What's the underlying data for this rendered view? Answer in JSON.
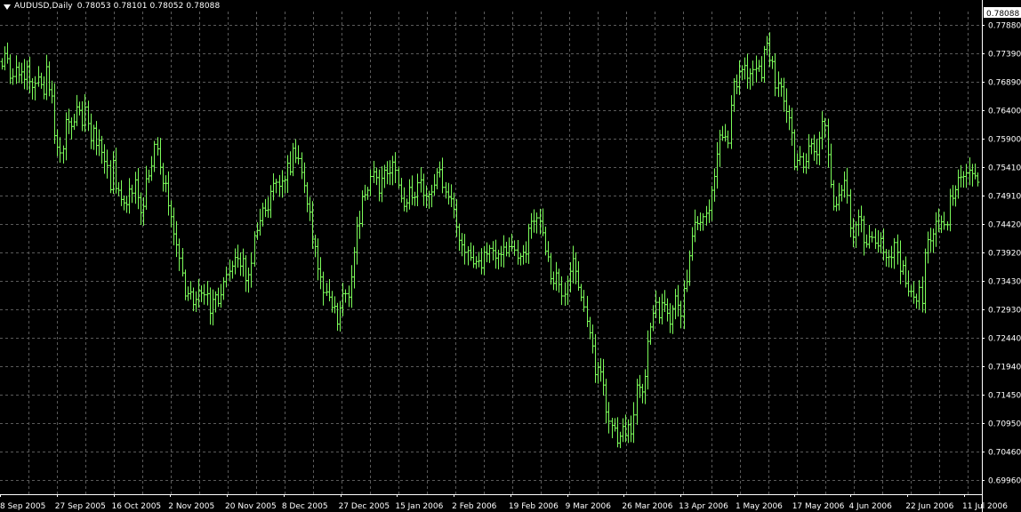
{
  "header": {
    "symbol": "AUDUSD,Daily",
    "quotes": "0.78053 0.78101 0.78052 0.78088"
  },
  "colors": {
    "background": "#000000",
    "grid": "#5a5a5a",
    "candle": "#7CFC5A",
    "axis_text": "#ffffff",
    "price_label_bg": "#ffffff",
    "price_label_text": "#000000"
  },
  "chart_data": {
    "type": "ohlc",
    "grid": true,
    "y_axis_side": "right",
    "ylim": [
      0.6971,
      0.7811
    ],
    "y_ticks": [
      "0.77880",
      "0.77390",
      "0.76890",
      "0.76400",
      "0.75900",
      "0.75410",
      "0.74910",
      "0.74420",
      "0.73920",
      "0.73430",
      "0.72930",
      "0.72440",
      "0.71940",
      "0.71450",
      "0.70950",
      "0.70460",
      "0.69960"
    ],
    "current_price_label": "0.78088",
    "x_tick_labels": [
      "8 Sep 2005",
      "27 Sep 2005",
      "16 Oct 2005",
      "2 Nov 2005",
      "20 Nov 2005",
      "8 Dec 2005",
      "27 Dec 2005",
      "15 Jan 2006",
      "2 Feb 2006",
      "19 Feb 2006",
      "9 Mar 2006",
      "26 Mar 2006",
      "13 Apr 2006",
      "1 May 2006",
      "17 May 2006",
      "4 Jun 2006",
      "22 Jun 2006",
      "11 Jul 2006"
    ],
    "series": [
      {
        "values": [
          0.7716,
          0.7738,
          0.7729,
          0.7695,
          0.7698,
          0.7714,
          0.7701,
          0.7706,
          0.7693,
          0.7715,
          0.7689,
          0.7679,
          0.7686,
          0.7697,
          0.7684,
          0.7667,
          0.7715,
          0.7675,
          0.7664,
          0.7595,
          0.7575,
          0.7565,
          0.7572,
          0.7623,
          0.7619,
          0.7611,
          0.7619,
          0.7645,
          0.7639,
          0.7613,
          0.7645,
          0.7616,
          0.7586,
          0.7608,
          0.7578,
          0.7587,
          0.7566,
          0.755,
          0.7543,
          0.7501,
          0.7552,
          0.7503,
          0.75,
          0.7484,
          0.7478,
          0.7475,
          0.7502,
          0.7495,
          0.7518,
          0.7487,
          0.7461,
          0.7472,
          0.752,
          0.7525,
          0.7542,
          0.758,
          0.7572,
          0.754,
          0.7512,
          0.7512,
          0.7473,
          0.7454,
          0.7424,
          0.7405,
          0.7382,
          0.7356,
          0.7316,
          0.732,
          0.7323,
          0.7301,
          0.731,
          0.7325,
          0.7321,
          0.7318,
          0.732,
          0.7286,
          0.731,
          0.7318,
          0.7303,
          0.7318,
          0.7341,
          0.7353,
          0.7359,
          0.7368,
          0.7383,
          0.7381,
          0.7368,
          0.7381,
          0.7343,
          0.7353,
          0.7373,
          0.7421,
          0.743,
          0.7447,
          0.7469,
          0.7465,
          0.7466,
          0.7498,
          0.7512,
          0.7514,
          0.7507,
          0.7516,
          0.7518,
          0.7547,
          0.7532,
          0.7573,
          0.7556,
          0.7555,
          0.7531,
          0.7508,
          0.7476,
          0.7462,
          0.7415,
          0.7402,
          0.7363,
          0.7349,
          0.7322,
          0.7323,
          0.7314,
          0.7296,
          0.7298,
          0.7267,
          0.7295,
          0.732,
          0.732,
          0.7314,
          0.7349,
          0.7392,
          0.7438,
          0.7442,
          0.7489,
          0.7492,
          0.75,
          0.7524,
          0.7532,
          0.7522,
          0.7495,
          0.7521,
          0.7535,
          0.7529,
          0.753,
          0.7549,
          0.7535,
          0.7509,
          0.7486,
          0.7472,
          0.7478,
          0.7505,
          0.7487,
          0.7488,
          0.7513,
          0.7518,
          0.7491,
          0.7489,
          0.7493,
          0.7497,
          0.7509,
          0.7531,
          0.7536,
          0.7505,
          0.7497,
          0.7488,
          0.7485,
          0.7467,
          0.7436,
          0.7413,
          0.7405,
          0.7392,
          0.7395,
          0.7383,
          0.7372,
          0.7376,
          0.7377,
          0.7365,
          0.7392,
          0.7389,
          0.7399,
          0.7395,
          0.7382,
          0.7389,
          0.7388,
          0.7401,
          0.7391,
          0.7402,
          0.7402,
          0.7396,
          0.7382,
          0.7385,
          0.7392,
          0.7389,
          0.7434,
          0.7446,
          0.7446,
          0.7452,
          0.7446,
          0.7426,
          0.7394,
          0.7384,
          0.7346,
          0.7338,
          0.7356,
          0.7336,
          0.7316,
          0.7319,
          0.7342,
          0.7359,
          0.7381,
          0.7359,
          0.7331,
          0.7314,
          0.7297,
          0.7272,
          0.7252,
          0.7229,
          0.7179,
          0.7192,
          0.7184,
          0.7161,
          0.7114,
          0.7098,
          0.7091,
          0.7086,
          0.706,
          0.7072,
          0.7089,
          0.7073,
          0.7092,
          0.7076,
          0.7109,
          0.7161,
          0.7157,
          0.7149,
          0.7176,
          0.7237,
          0.7262,
          0.7286,
          0.7305,
          0.7278,
          0.7304,
          0.7301,
          0.7286,
          0.7267,
          0.7294,
          0.7316,
          0.73,
          0.7281,
          0.7329,
          0.7341,
          0.7386,
          0.742,
          0.7444,
          0.7442,
          0.7444,
          0.7454,
          0.746,
          0.7465,
          0.75,
          0.7524,
          0.7563,
          0.7596,
          0.7592,
          0.7593,
          0.7582,
          0.7648,
          0.7689,
          0.768,
          0.7707,
          0.771,
          0.7717,
          0.7695,
          0.7703,
          0.771,
          0.7712,
          0.7716,
          0.7696,
          0.7745,
          0.7756,
          0.7726,
          0.7724,
          0.7678,
          0.7686,
          0.768,
          0.7655,
          0.7637,
          0.7626,
          0.76,
          0.7541,
          0.7552,
          0.7558,
          0.754,
          0.755,
          0.7577,
          0.7581,
          0.7567,
          0.7562,
          0.7591,
          0.762,
          0.7612,
          0.7562,
          0.751,
          0.7472,
          0.7475,
          0.7492,
          0.75,
          0.7517,
          0.7491,
          0.7434,
          0.7418,
          0.744,
          0.7454,
          0.7448,
          0.7409,
          0.7406,
          0.7419,
          0.7418,
          0.7408,
          0.7403,
          0.7416,
          0.7392,
          0.7383,
          0.7384,
          0.7383,
          0.7409,
          0.7392,
          0.7359,
          0.7369,
          0.7338,
          0.7324,
          0.7324,
          0.7314,
          0.7307,
          0.7331,
          0.7303,
          0.7391,
          0.7414,
          0.7412,
          0.7424,
          0.7446,
          0.7433,
          0.7445,
          0.744,
          0.744,
          0.749,
          0.7486,
          0.7501,
          0.7522,
          0.7523,
          0.7524,
          0.753,
          0.7535,
          0.7529,
          0.7525,
          0.7514
        ]
      }
    ]
  }
}
